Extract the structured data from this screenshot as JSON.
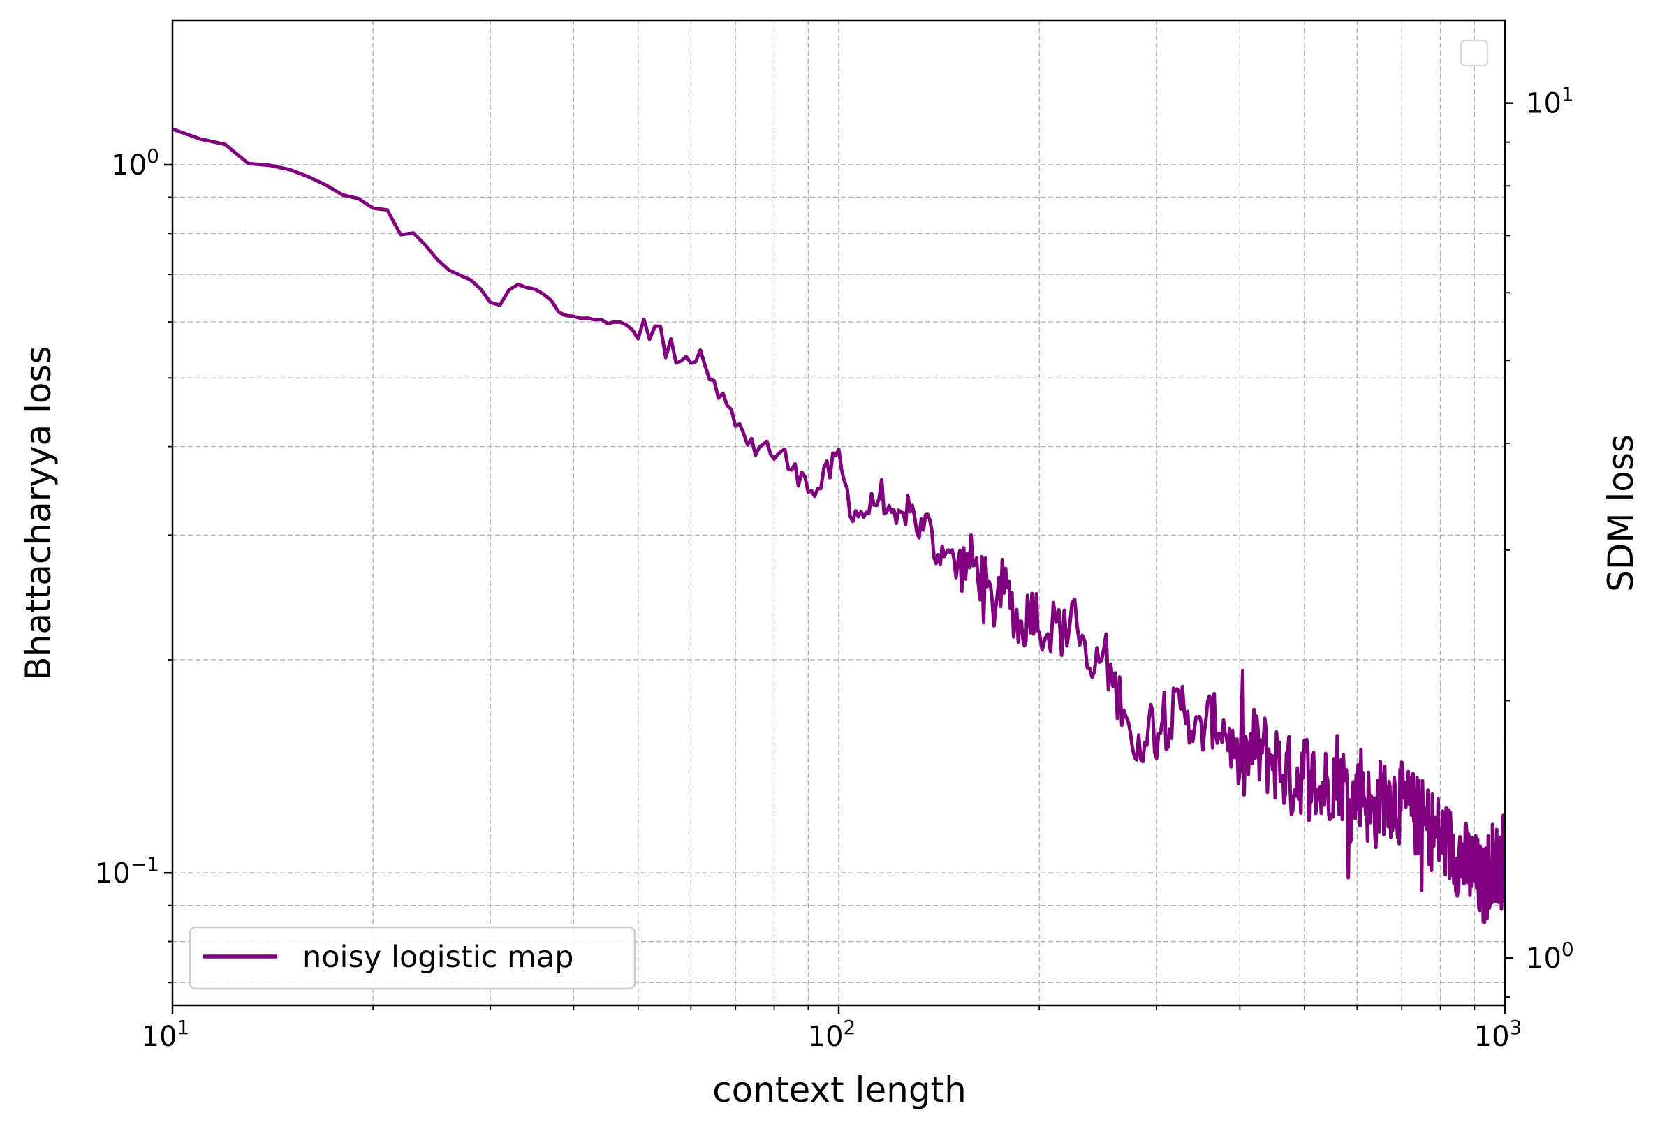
{
  "chart_data": {
    "type": "line",
    "xlabel": "context length",
    "ylabel": "Bhattacharyya loss",
    "y2label": "SDM loss",
    "xscale": "log",
    "yscale": "log",
    "y2scale": "log",
    "xlim": [
      10,
      1000
    ],
    "ylim": [
      0.065,
      1.6
    ],
    "y2lim": [
      0.88,
      12.5
    ],
    "grid": "on (major and minor, dashed)",
    "legend_position": "lower-left",
    "xticks": [
      {
        "value": 10,
        "base": "10",
        "exp": "1"
      },
      {
        "value": 100,
        "base": "10",
        "exp": "2"
      },
      {
        "value": 1000,
        "base": "10",
        "exp": "3"
      }
    ],
    "yticks": [
      {
        "value": 1.0,
        "base": "10",
        "exp": "0"
      },
      {
        "value": 0.1,
        "base": "10",
        "exp": "−1"
      }
    ],
    "y2ticks": [
      {
        "value": 10,
        "base": "10",
        "exp": "1"
      },
      {
        "value": 1,
        "base": "10",
        "exp": "0"
      }
    ],
    "series": [
      {
        "name": "noisy logistic map",
        "color": "#800080",
        "anchors": [
          [
            10,
            1.12
          ],
          [
            11,
            1.085
          ],
          [
            12,
            1.065
          ],
          [
            13,
            1.01
          ],
          [
            15,
            0.98
          ],
          [
            17,
            0.935
          ],
          [
            19,
            0.89
          ],
          [
            21,
            0.86
          ],
          [
            22,
            0.8
          ],
          [
            23,
            0.795
          ],
          [
            24,
            0.77
          ],
          [
            25,
            0.73
          ],
          [
            27,
            0.7
          ],
          [
            29,
            0.665
          ],
          [
            30,
            0.64
          ],
          [
            31,
            0.63
          ],
          [
            32,
            0.665
          ],
          [
            33,
            0.675
          ],
          [
            35,
            0.665
          ],
          [
            37,
            0.645
          ],
          [
            38,
            0.62
          ],
          [
            40,
            0.615
          ],
          [
            42,
            0.61
          ],
          [
            44,
            0.605
          ],
          [
            45,
            0.593
          ],
          [
            47,
            0.6
          ],
          [
            49,
            0.585
          ],
          [
            51,
            0.583
          ],
          [
            52,
            0.593
          ],
          [
            54,
            0.575
          ],
          [
            55,
            0.545
          ],
          [
            57,
            0.54
          ],
          [
            58,
            0.52
          ],
          [
            60,
            0.545
          ],
          [
            62,
            0.55
          ],
          [
            64,
            0.51
          ],
          [
            66,
            0.49
          ],
          [
            68,
            0.445
          ],
          [
            70,
            0.45
          ],
          [
            72,
            0.41
          ],
          [
            74,
            0.395
          ],
          [
            76,
            0.41
          ],
          [
            78,
            0.4
          ],
          [
            80,
            0.39
          ],
          [
            83,
            0.385
          ],
          [
            86,
            0.365
          ],
          [
            89,
            0.375
          ],
          [
            91,
            0.34
          ],
          [
            95,
            0.36
          ],
          [
            100,
            0.385
          ],
          [
            104,
            0.33
          ],
          [
            108,
            0.32
          ],
          [
            112,
            0.33
          ],
          [
            116,
            0.345
          ],
          [
            120,
            0.31
          ],
          [
            124,
            0.315
          ],
          [
            128,
            0.33
          ],
          [
            132,
            0.305
          ],
          [
            136,
            0.315
          ],
          [
            140,
            0.28
          ],
          [
            145,
            0.29
          ],
          [
            150,
            0.27
          ],
          [
            158,
            0.275
          ],
          [
            165,
            0.26
          ],
          [
            170,
            0.235
          ],
          [
            175,
            0.255
          ],
          [
            180,
            0.245
          ],
          [
            188,
            0.22
          ],
          [
            195,
            0.24
          ],
          [
            205,
            0.22
          ],
          [
            212,
            0.225
          ],
          [
            220,
            0.215
          ],
          [
            225,
            0.255
          ],
          [
            230,
            0.205
          ],
          [
            240,
            0.19
          ],
          [
            250,
            0.205
          ],
          [
            260,
            0.18
          ],
          [
            270,
            0.175
          ],
          [
            280,
            0.14
          ],
          [
            290,
            0.165
          ],
          [
            300,
            0.16
          ],
          [
            315,
            0.165
          ],
          [
            330,
            0.175
          ],
          [
            345,
            0.155
          ],
          [
            360,
            0.165
          ],
          [
            380,
            0.16
          ],
          [
            400,
            0.14
          ],
          [
            420,
            0.15
          ],
          [
            450,
            0.145
          ],
          [
            480,
            0.135
          ],
          [
            500,
            0.14
          ],
          [
            530,
            0.13
          ],
          [
            560,
            0.14
          ],
          [
            590,
            0.125
          ],
          [
            610,
            0.135
          ],
          [
            630,
            0.12
          ],
          [
            660,
            0.13
          ],
          [
            700,
            0.125
          ],
          [
            740,
            0.12
          ],
          [
            780,
            0.115
          ],
          [
            820,
            0.11
          ],
          [
            860,
            0.105
          ],
          [
            900,
            0.1
          ],
          [
            930,
            0.095
          ],
          [
            960,
            0.105
          ],
          [
            985,
            0.1
          ],
          [
            1000,
            0.11
          ]
        ]
      }
    ]
  }
}
